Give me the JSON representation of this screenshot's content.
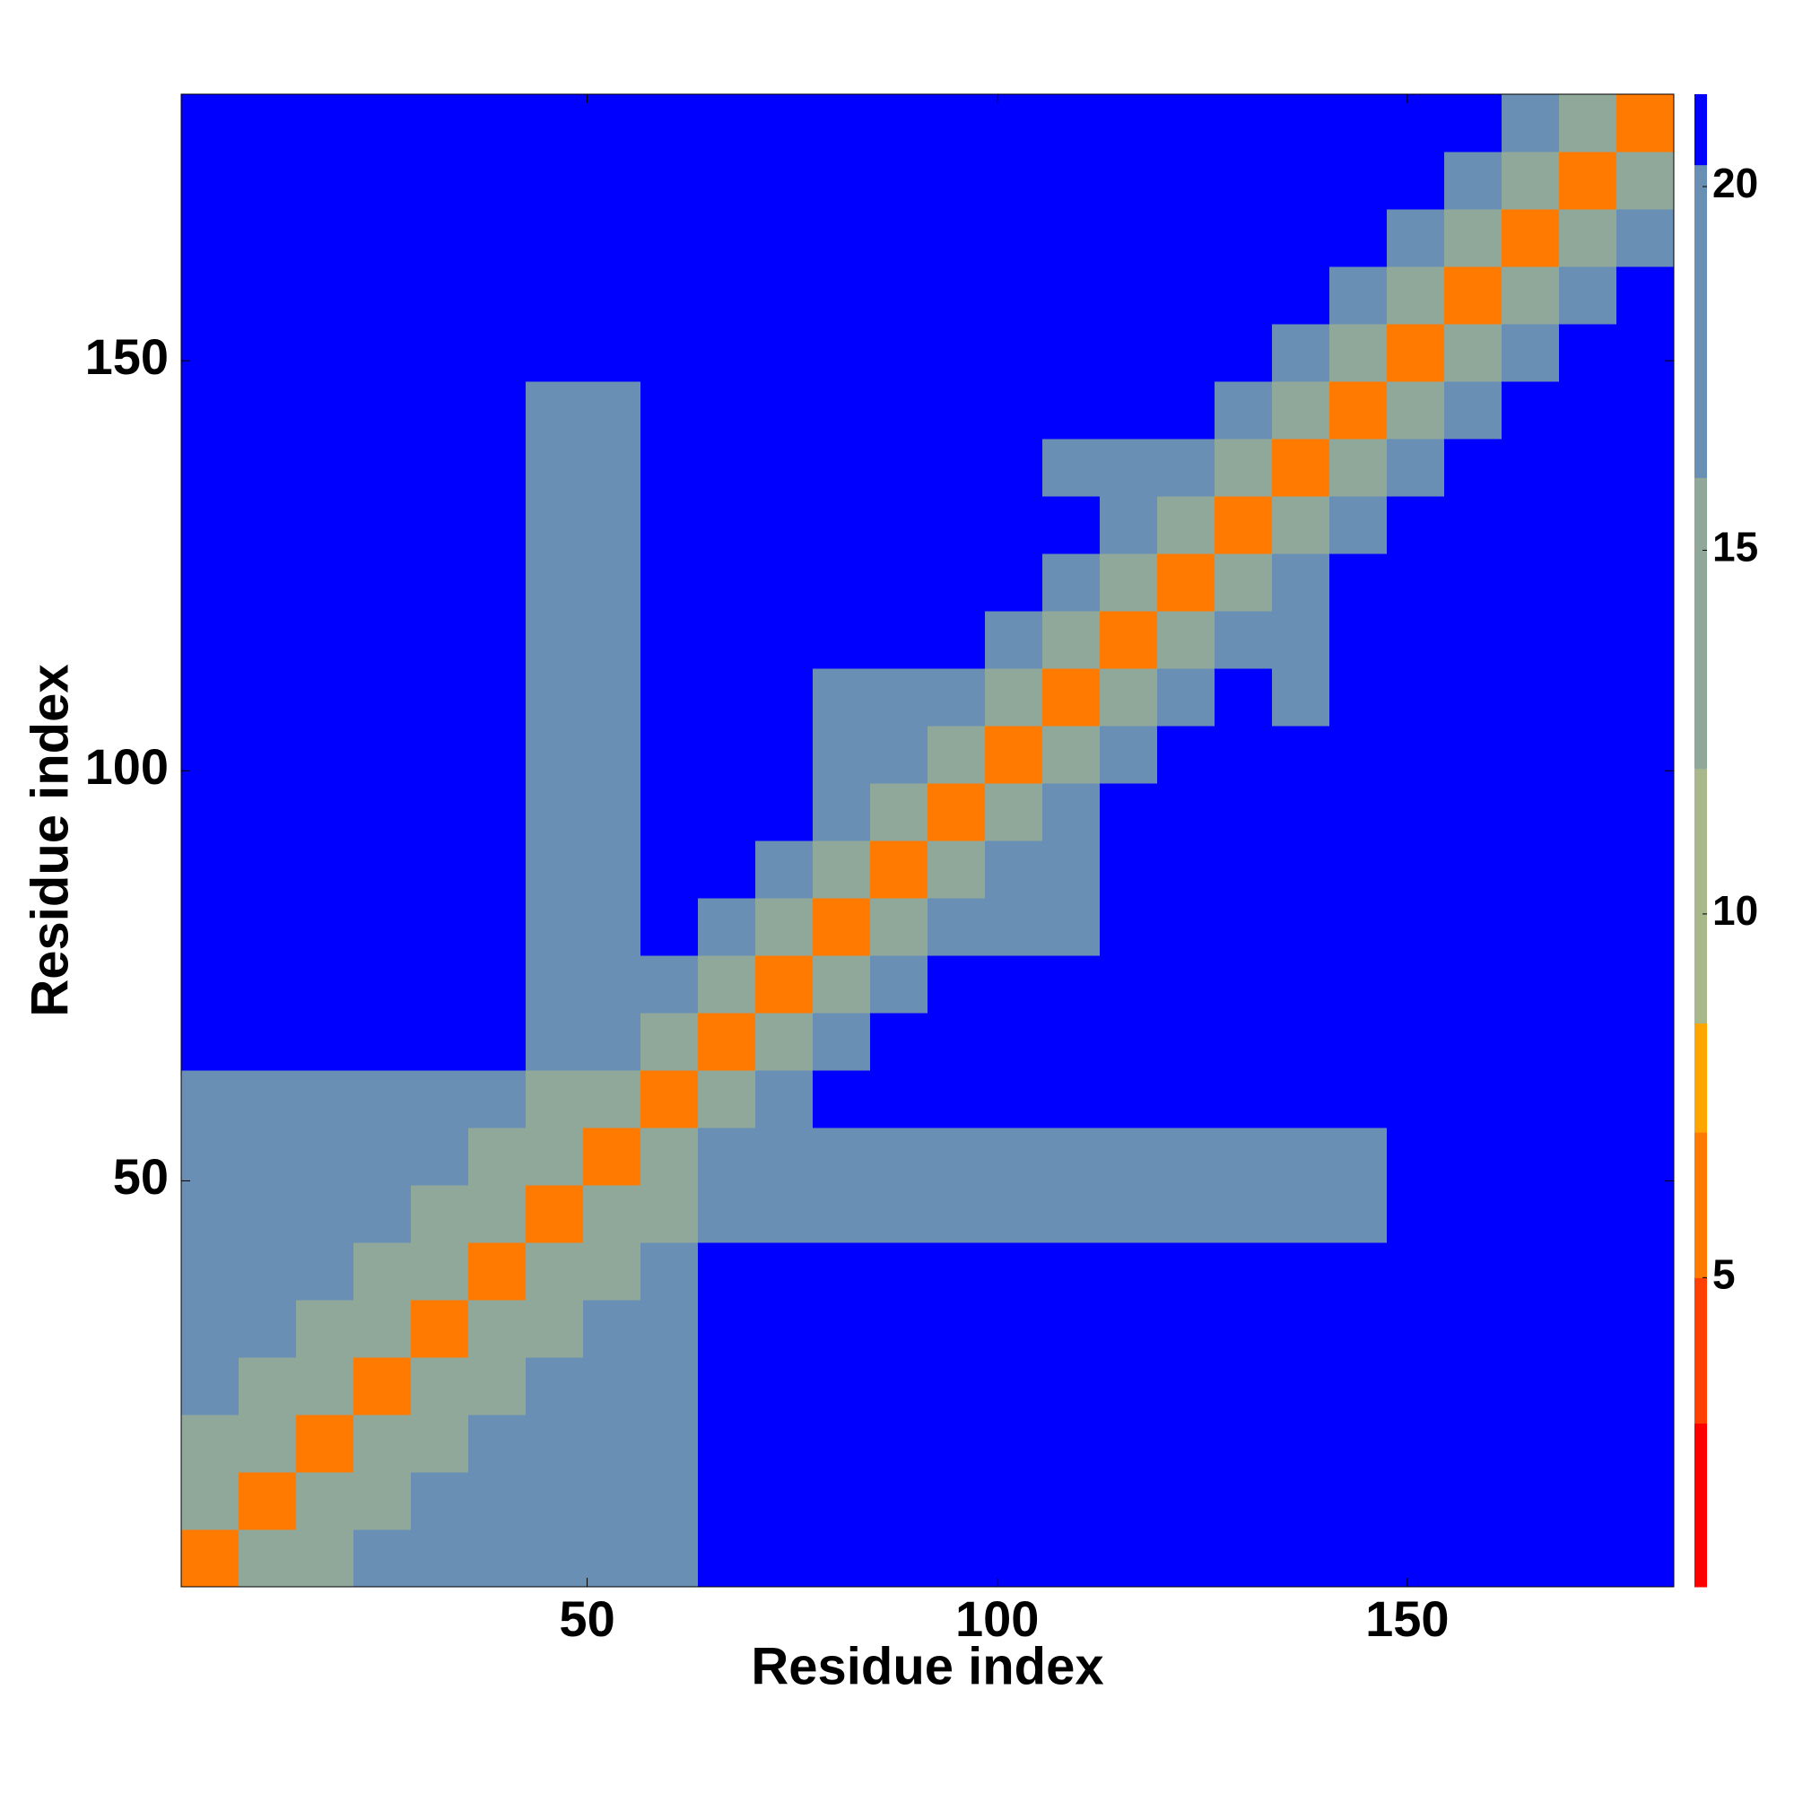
{
  "chart_data": {
    "type": "heatmap",
    "xlabel": "Residue index",
    "ylabel": "Residue index",
    "x": [
      4,
      11,
      18,
      25,
      32,
      39,
      46,
      53,
      60,
      67,
      74,
      81,
      88,
      95,
      102,
      109,
      116,
      123,
      130,
      137,
      144,
      151,
      158,
      165,
      172,
      179
    ],
    "y": [
      4,
      11,
      18,
      25,
      32,
      39,
      46,
      53,
      60,
      67,
      74,
      81,
      88,
      95,
      102,
      109,
      116,
      123,
      130,
      137,
      144,
      151,
      158,
      165,
      172,
      179
    ],
    "z": [
      [
        5,
        12,
        15,
        17,
        17,
        17,
        17,
        19,
        19,
        21,
        21,
        21,
        21,
        21,
        21,
        21,
        21,
        21,
        21,
        21,
        21,
        21,
        21,
        21,
        21,
        21
      ],
      [
        12,
        5,
        12,
        15,
        17,
        17,
        17,
        17,
        17,
        21,
        21,
        21,
        21,
        21,
        21,
        21,
        21,
        21,
        21,
        21,
        21,
        21,
        21,
        21,
        21,
        21
      ],
      [
        15,
        12,
        5,
        12,
        15,
        17,
        17,
        17,
        17,
        21,
        21,
        21,
        21,
        21,
        21,
        21,
        21,
        21,
        21,
        21,
        21,
        21,
        21,
        21,
        21,
        21
      ],
      [
        17,
        15,
        12,
        5,
        12,
        15,
        17,
        17,
        17,
        21,
        21,
        21,
        21,
        21,
        21,
        21,
        21,
        21,
        21,
        21,
        21,
        21,
        21,
        21,
        21,
        21
      ],
      [
        17,
        17,
        15,
        12,
        5,
        12,
        15,
        17,
        17,
        21,
        21,
        21,
        21,
        21,
        21,
        21,
        21,
        21,
        21,
        21,
        21,
        21,
        21,
        21,
        21,
        21
      ],
      [
        17,
        17,
        17,
        15,
        12,
        5,
        12,
        15,
        17,
        21,
        21,
        21,
        21,
        21,
        21,
        21,
        21,
        21,
        21,
        21,
        21,
        21,
        21,
        21,
        21,
        21
      ],
      [
        17,
        17,
        17,
        17,
        15,
        12,
        5,
        12,
        15,
        19,
        19,
        19,
        19,
        19,
        19,
        19,
        19,
        19,
        19,
        19,
        19,
        21,
        21,
        21,
        21,
        21
      ],
      [
        19,
        17,
        17,
        17,
        17,
        15,
        12,
        5,
        12,
        19,
        19,
        19,
        19,
        19,
        19,
        19,
        19,
        19,
        19,
        19,
        19,
        21,
        21,
        21,
        21,
        21
      ],
      [
        19,
        17,
        17,
        17,
        17,
        17,
        15,
        12,
        5,
        14,
        20,
        21,
        21,
        21,
        21,
        21,
        21,
        21,
        21,
        21,
        21,
        21,
        21,
        21,
        21,
        21
      ],
      [
        21,
        21,
        21,
        21,
        21,
        21,
        19,
        19,
        14,
        5,
        14,
        20,
        21,
        21,
        21,
        21,
        21,
        21,
        21,
        21,
        21,
        21,
        21,
        21,
        21,
        21
      ],
      [
        21,
        21,
        21,
        21,
        21,
        21,
        19,
        19,
        20,
        14,
        5,
        14,
        20,
        21,
        21,
        21,
        21,
        21,
        21,
        21,
        21,
        21,
        21,
        21,
        21,
        21
      ],
      [
        21,
        21,
        21,
        21,
        21,
        21,
        19,
        19,
        21,
        20,
        14,
        5,
        14,
        17,
        17,
        17,
        21,
        21,
        21,
        21,
        21,
        21,
        21,
        21,
        21,
        21
      ],
      [
        21,
        21,
        21,
        21,
        21,
        21,
        19,
        19,
        21,
        21,
        20,
        14,
        5,
        14,
        17,
        17,
        21,
        21,
        21,
        21,
        21,
        21,
        21,
        21,
        21,
        21
      ],
      [
        21,
        21,
        21,
        21,
        21,
        21,
        19,
        19,
        21,
        21,
        21,
        17,
        14,
        5,
        14,
        17,
        21,
        21,
        21,
        21,
        21,
        21,
        21,
        21,
        21,
        21
      ],
      [
        21,
        21,
        21,
        21,
        21,
        21,
        19,
        19,
        21,
        21,
        21,
        17,
        17,
        14,
        5,
        14,
        20,
        21,
        21,
        21,
        21,
        21,
        21,
        21,
        21,
        21
      ],
      [
        21,
        21,
        21,
        21,
        21,
        21,
        19,
        19,
        21,
        21,
        21,
        17,
        17,
        17,
        14,
        5,
        14,
        20,
        21,
        16,
        21,
        21,
        21,
        21,
        21,
        21
      ],
      [
        21,
        21,
        21,
        21,
        21,
        21,
        19,
        19,
        21,
        21,
        21,
        21,
        21,
        21,
        20,
        14,
        5,
        14,
        20,
        16,
        21,
        21,
        21,
        21,
        21,
        21
      ],
      [
        21,
        21,
        21,
        21,
        21,
        21,
        19,
        19,
        21,
        21,
        21,
        21,
        21,
        21,
        21,
        20,
        14,
        5,
        14,
        20,
        21,
        21,
        21,
        21,
        21,
        21
      ],
      [
        21,
        21,
        21,
        21,
        21,
        21,
        19,
        19,
        21,
        21,
        21,
        21,
        21,
        21,
        21,
        21,
        20,
        14,
        5,
        14,
        20,
        21,
        21,
        21,
        21,
        21
      ],
      [
        21,
        21,
        21,
        21,
        21,
        21,
        19,
        19,
        21,
        21,
        21,
        21,
        21,
        21,
        21,
        16,
        16,
        20,
        14,
        5,
        14,
        20,
        21,
        21,
        21,
        21
      ],
      [
        21,
        21,
        21,
        21,
        21,
        21,
        19,
        19,
        21,
        21,
        21,
        21,
        21,
        21,
        21,
        21,
        21,
        21,
        20,
        14,
        5,
        12,
        18,
        21,
        21,
        21
      ],
      [
        21,
        21,
        21,
        21,
        21,
        21,
        21,
        21,
        21,
        21,
        21,
        21,
        21,
        21,
        21,
        21,
        21,
        21,
        21,
        20,
        12,
        5,
        12,
        18,
        21,
        21
      ],
      [
        21,
        21,
        21,
        21,
        21,
        21,
        21,
        21,
        21,
        21,
        21,
        21,
        21,
        21,
        21,
        21,
        21,
        21,
        21,
        21,
        18,
        12,
        5,
        12,
        18,
        21
      ],
      [
        21,
        21,
        21,
        21,
        21,
        21,
        21,
        21,
        21,
        21,
        21,
        21,
        21,
        21,
        21,
        21,
        21,
        21,
        21,
        21,
        21,
        18,
        12,
        5,
        12,
        18
      ],
      [
        21,
        21,
        21,
        21,
        21,
        21,
        21,
        21,
        21,
        21,
        21,
        21,
        21,
        21,
        21,
        21,
        21,
        21,
        21,
        21,
        21,
        21,
        18,
        12,
        5,
        12
      ],
      [
        21,
        21,
        21,
        21,
        21,
        21,
        21,
        21,
        21,
        21,
        21,
        21,
        21,
        21,
        21,
        21,
        21,
        21,
        21,
        21,
        21,
        21,
        21,
        18,
        12,
        5
      ]
    ],
    "xlim": [
      0.5,
      182.5
    ],
    "ylim": [
      0.5,
      182.5
    ],
    "xticks": [
      50,
      100,
      150
    ],
    "yticks": [
      50,
      100,
      150
    ],
    "colorbar": {
      "lim": [
        0.75,
        21.27
      ],
      "ticks": [
        5,
        10,
        15,
        20
      ],
      "scale": [
        [
          0.75,
          "#ff0000"
        ],
        [
          3,
          "#ff4000"
        ],
        [
          5,
          "#ff7a00"
        ],
        [
          7,
          "#ffa500"
        ],
        [
          8.5,
          "#a8b88a"
        ],
        [
          12,
          "#8fa89a"
        ],
        [
          16,
          "#6a8fb5"
        ],
        [
          20.3,
          "#0000ff"
        ]
      ]
    }
  }
}
